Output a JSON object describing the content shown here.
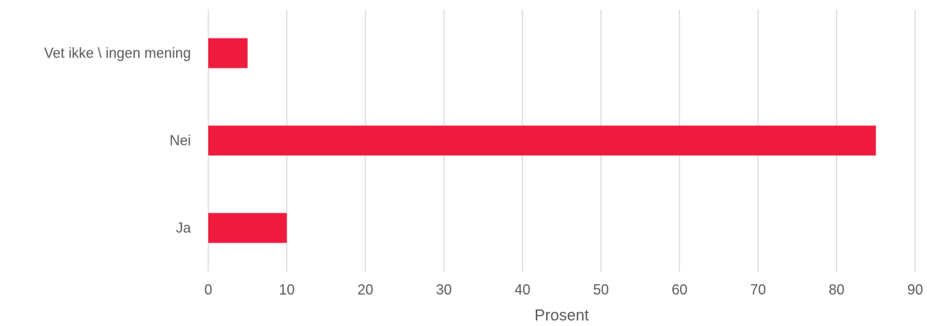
{
  "chart_data": {
    "type": "bar",
    "orientation": "horizontal",
    "categories": [
      "Vet ikke \\ ingen mening",
      "Nei",
      "Ja"
    ],
    "values": [
      5,
      85,
      10
    ],
    "title": "",
    "xlabel": "Prosent",
    "ylabel": "",
    "xlim": [
      0,
      90
    ],
    "xticks": [
      0,
      10,
      20,
      30,
      40,
      50,
      60,
      70,
      80,
      90
    ],
    "grid": "vertical",
    "legend": "none",
    "bar_color": "#ee1b3f"
  }
}
